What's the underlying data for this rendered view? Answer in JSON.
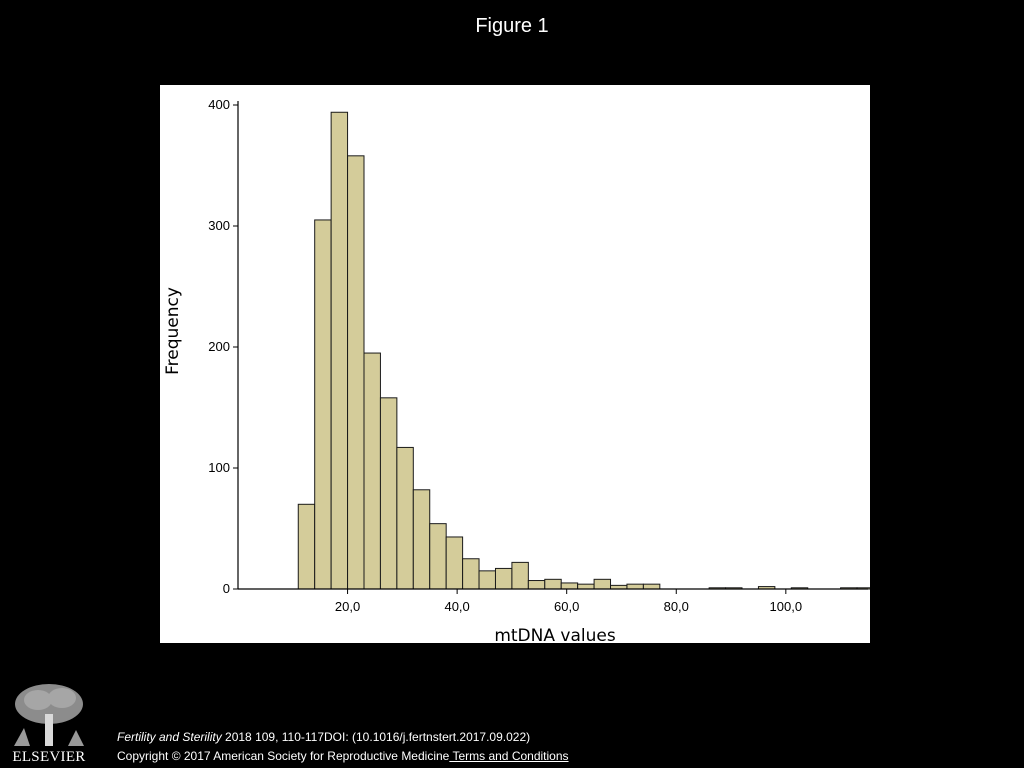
{
  "slide": {
    "title": "Figure 1"
  },
  "citation": {
    "journal": "Fertility and Sterility",
    "details": " 2018 109, 110-117DOI: (10.1016/j.fertnstert.2017.09.022)"
  },
  "copyright": {
    "text": "Copyright © 2017 American Society for Reproductive Medicine",
    "link_text": " Terms and Conditions"
  },
  "logo": {
    "wordmark": "ELSEVIER"
  },
  "colors": {
    "bar_fill": "#d4cc9a",
    "bar_stroke": "#1a1a1a",
    "background": "#000000",
    "panel": "#ffffff"
  },
  "chart_data": {
    "type": "bar",
    "title": "",
    "xlabel": "mtDNA values",
    "ylabel": "Frequency",
    "xlim": [
      0,
      115
    ],
    "ylim": [
      0,
      400
    ],
    "bin_width": 3,
    "bins": [
      [
        11,
        70
      ],
      [
        14,
        305
      ],
      [
        17,
        394
      ],
      [
        20,
        358
      ],
      [
        23,
        195
      ],
      [
        26,
        158
      ],
      [
        29,
        117
      ],
      [
        32,
        82
      ],
      [
        35,
        54
      ],
      [
        38,
        43
      ],
      [
        41,
        25
      ],
      [
        44,
        15
      ],
      [
        47,
        17
      ],
      [
        50,
        22
      ],
      [
        53,
        7
      ],
      [
        56,
        8
      ],
      [
        59,
        5
      ],
      [
        62,
        4
      ],
      [
        65,
        8
      ],
      [
        68,
        3
      ],
      [
        71,
        4
      ],
      [
        74,
        4
      ],
      [
        86,
        1
      ],
      [
        89,
        1
      ],
      [
        95,
        2
      ],
      [
        101,
        1
      ],
      [
        110,
        1
      ],
      [
        113,
        1
      ]
    ],
    "x_ticks": [
      20,
      40,
      60,
      80,
      100
    ],
    "x_tick_labels": [
      "20,0",
      "40,0",
      "60,0",
      "80,0",
      "100,0"
    ],
    "y_ticks": [
      0,
      100,
      200,
      300,
      400
    ],
    "y_tick_labels": [
      "0",
      "100",
      "200",
      "300",
      "400"
    ],
    "grid": false
  }
}
